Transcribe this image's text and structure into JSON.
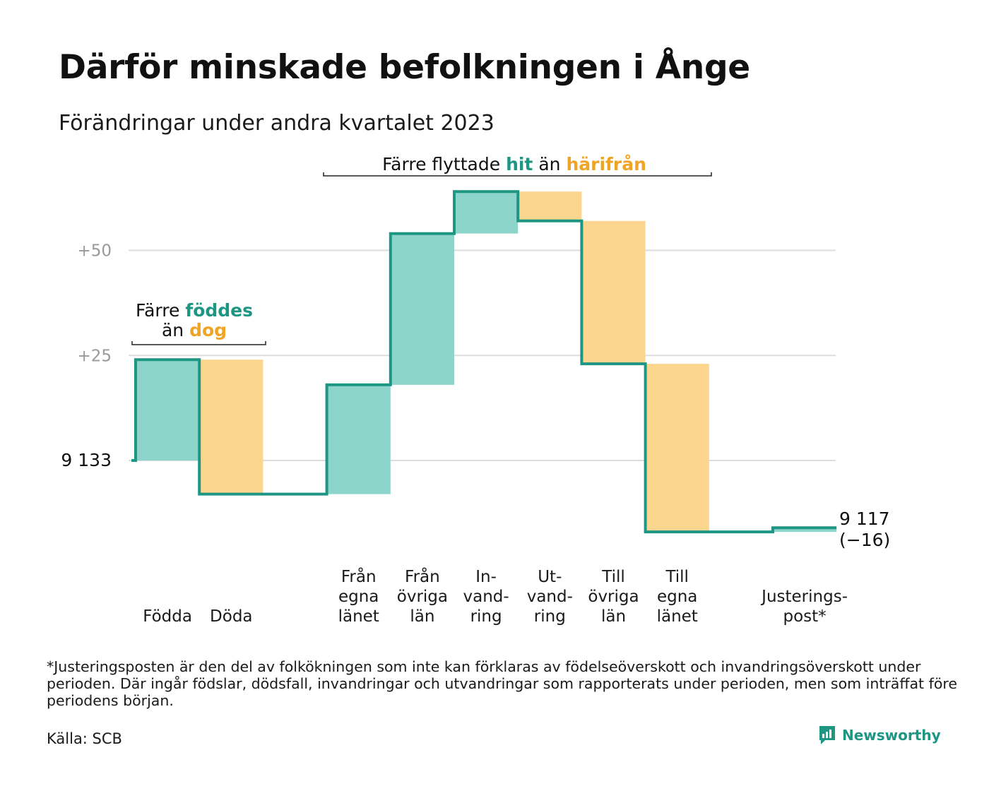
{
  "title": "Därför minskade befolkningen i Ånge",
  "subtitle": "Förändringar under andra kvartalet 2023",
  "footnote": "*Justeringsposten är den del av folkökningen som inte kan förklaras av födelseöverskott och invandringsöverskott under perioden. Där ingår födslar, dödsfall, invandringar och utvandringar som rapporterats under perioden, men som inträffat före periodens början.",
  "source": "Källa: SCB",
  "brand": {
    "name": "Newsworthy",
    "icon": "newsworthy-logo-icon"
  },
  "colors": {
    "increase": "#8dd5cb",
    "decrease": "#fcd68f",
    "line": "#1e9684",
    "increase_text": "#1e9684",
    "decrease_text": "#f0a424",
    "grid": "#dddddd",
    "tick": "#999999"
  },
  "annotations": {
    "births_deaths": {
      "line1": "Färre",
      "line1_highlight": "föddes",
      "line2": "än",
      "line2_highlight": "dog"
    },
    "migration": {
      "prefix": "Färre flyttade",
      "highlight1": "hit",
      "middle": "än",
      "highlight2": "härifrån"
    }
  },
  "chart_data": {
    "type": "waterfall",
    "start_value": 9133,
    "start_label": "9  133",
    "end_label": "9 117",
    "end_change_label": "(−16)",
    "yticks": [
      {
        "label": "+50",
        "offset": 50
      },
      {
        "label": "+25",
        "offset": 25
      }
    ],
    "steps": [
      {
        "label_lines": [
          "Födda"
        ],
        "value": 24
      },
      {
        "label_lines": [
          "Döda"
        ],
        "value": -32
      },
      {
        "label_lines": [],
        "value": 0
      },
      {
        "label_lines": [
          "Från",
          "egna",
          "länet"
        ],
        "value": 26
      },
      {
        "label_lines": [
          "Från",
          "övriga",
          "län"
        ],
        "value": 36
      },
      {
        "label_lines": [
          "In-",
          "vand-",
          "ring"
        ],
        "value": 10
      },
      {
        "label_lines": [
          "Ut-",
          "vand-",
          "ring"
        ],
        "value": -7
      },
      {
        "label_lines": [
          "Till",
          "övriga",
          "län"
        ],
        "value": -34
      },
      {
        "label_lines": [
          "Till",
          "egna",
          "länet"
        ],
        "value": -40
      },
      {
        "label_lines": [],
        "value": 0
      },
      {
        "label_lines": [
          "Justerings-",
          "post*"
        ],
        "value": 1
      }
    ]
  }
}
